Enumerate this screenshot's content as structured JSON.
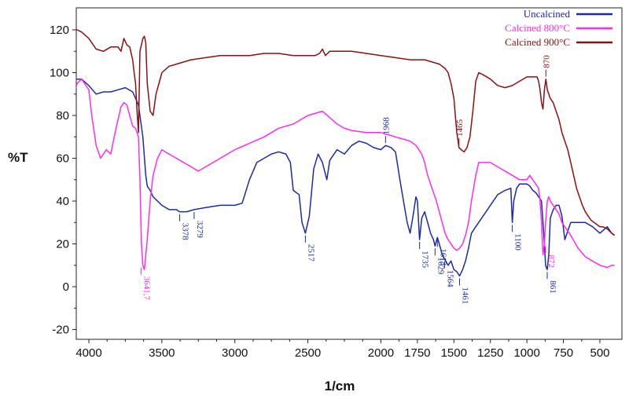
{
  "chart_data": {
    "type": "line",
    "xlabel": "1/cm",
    "ylabel": "%T",
    "xlim": [
      4100,
      400
    ],
    "ylim": [
      -25,
      130
    ],
    "x_ticks": [
      4000,
      3500,
      3000,
      2500,
      2000,
      1750,
      1500,
      1250,
      1000,
      750,
      500
    ],
    "y_ticks": [
      -20,
      0,
      20,
      40,
      60,
      80,
      100,
      120
    ],
    "legend_position": "top-right",
    "series": [
      {
        "name": "Uncalcined",
        "color": "#1c2aa8",
        "x": [
          4100,
          4050,
          4000,
          3950,
          3900,
          3850,
          3800,
          3750,
          3700,
          3660,
          3630,
          3610,
          3600,
          3580,
          3560,
          3530,
          3500,
          3450,
          3400,
          3378,
          3330,
          3279,
          3200,
          3100,
          3000,
          2950,
          2900,
          2850,
          2800,
          2750,
          2700,
          2650,
          2620,
          2600,
          2560,
          2540,
          2517,
          2490,
          2460,
          2430,
          2400,
          2370,
          2350,
          2300,
          2250,
          2200,
          2150,
          2100,
          2050,
          2000,
          1968,
          1930,
          1900,
          1870,
          1840,
          1820,
          1800,
          1780,
          1760,
          1750,
          1735,
          1720,
          1700,
          1680,
          1660,
          1640,
          1629,
          1613,
          1600,
          1580,
          1564,
          1540,
          1520,
          1500,
          1480,
          1461,
          1440,
          1420,
          1400,
          1380,
          1350,
          1300,
          1250,
          1200,
          1150,
          1110,
          1100,
          1090,
          1070,
          1050,
          1000,
          980,
          960,
          940,
          920,
          900,
          890,
          880,
          872,
          861,
          850,
          840,
          820,
          800,
          780,
          760,
          740,
          720,
          700,
          650,
          600,
          550,
          500,
          450,
          420,
          400
        ],
        "y": [
          97,
          97,
          94,
          90,
          91,
          91,
          92,
          93,
          91,
          85,
          70,
          52,
          47,
          45,
          42,
          40,
          38,
          36,
          36,
          35,
          35,
          36,
          37,
          38,
          38,
          39,
          50,
          58,
          60,
          62,
          63,
          62,
          58,
          45,
          43,
          30,
          25,
          33,
          55,
          62,
          58,
          50,
          59,
          64,
          62,
          66,
          68,
          67,
          65,
          64,
          66,
          65,
          63,
          50,
          38,
          30,
          25,
          33,
          42,
          40,
          22,
          32,
          35,
          30,
          25,
          22,
          19,
          23,
          20,
          15,
          13,
          10,
          12,
          8,
          7,
          5,
          8,
          12,
          18,
          25,
          28,
          33,
          38,
          43,
          45,
          46,
          30,
          40,
          46,
          48,
          48,
          47,
          45,
          44,
          42,
          40,
          30,
          20,
          10,
          8,
          15,
          32,
          36,
          38,
          38,
          33,
          22,
          26,
          30,
          30,
          30,
          28,
          25,
          28,
          25,
          24
        ]
      },
      {
        "name": "Calcined 800°C",
        "color": "#ff2cf0",
        "x": [
          4100,
          4080,
          4050,
          4000,
          3980,
          3950,
          3920,
          3900,
          3880,
          3850,
          3820,
          3800,
          3780,
          3760,
          3740,
          3720,
          3700,
          3680,
          3660,
          3650,
          3640,
          3630,
          3620,
          3600,
          3580,
          3560,
          3530,
          3500,
          3450,
          3400,
          3350,
          3300,
          3250,
          3200,
          3100,
          3000,
          2900,
          2800,
          2700,
          2600,
          2500,
          2400,
          2350,
          2300,
          2250,
          2200,
          2100,
          2000,
          1950,
          1900,
          1850,
          1800,
          1780,
          1760,
          1740,
          1720,
          1700,
          1680,
          1660,
          1640,
          1620,
          1600,
          1580,
          1560,
          1540,
          1500,
          1480,
          1460,
          1440,
          1420,
          1400,
          1380,
          1350,
          1330,
          1300,
          1250,
          1200,
          1150,
          1100,
          1050,
          1000,
          980,
          960,
          940,
          920,
          910,
          900,
          890,
          880,
          872,
          860,
          850,
          840,
          820,
          800,
          780,
          760,
          740,
          720,
          700,
          650,
          600,
          550,
          500,
          450,
          420,
          400
        ],
        "y": [
          90,
          95,
          97,
          92,
          80,
          66,
          60,
          62,
          64,
          62,
          72,
          78,
          84,
          86,
          85,
          80,
          75,
          74,
          70,
          50,
          20,
          10,
          8,
          22,
          40,
          52,
          60,
          64,
          62,
          60,
          58,
          56,
          54,
          56,
          60,
          64,
          67,
          70,
          74,
          76,
          80,
          82,
          79,
          76,
          74,
          73,
          72,
          72,
          71,
          70,
          69,
          68,
          67,
          66,
          64,
          62,
          58,
          52,
          48,
          44,
          40,
          35,
          30,
          25,
          22,
          18,
          17,
          18,
          20,
          24,
          30,
          40,
          52,
          58,
          58,
          58,
          56,
          54,
          52,
          50,
          50,
          52,
          50,
          48,
          46,
          40,
          30,
          15,
          20,
          30,
          40,
          42,
          40,
          38,
          36,
          34,
          30,
          28,
          26,
          24,
          18,
          14,
          12,
          10,
          9,
          10,
          10
        ]
      },
      {
        "name": "Calcined 900°C",
        "color": "#8b1010",
        "x": [
          4100,
          4080,
          4050,
          4000,
          3980,
          3950,
          3900,
          3850,
          3800,
          3780,
          3760,
          3740,
          3720,
          3700,
          3690,
          3680,
          3670,
          3660,
          3650,
          3640,
          3630,
          3620,
          3610,
          3600,
          3580,
          3560,
          3540,
          3500,
          3450,
          3400,
          3300,
          3200,
          3100,
          3000,
          2900,
          2800,
          2700,
          2600,
          2500,
          2450,
          2420,
          2400,
          2380,
          2350,
          2300,
          2200,
          2100,
          2000,
          1900,
          1800,
          1750,
          1700,
          1650,
          1600,
          1580,
          1560,
          1540,
          1520,
          1500,
          1490,
          1480,
          1465,
          1450,
          1430,
          1410,
          1390,
          1370,
          1350,
          1330,
          1300,
          1250,
          1200,
          1150,
          1100,
          1050,
          1000,
          950,
          930,
          920,
          910,
          900,
          890,
          880,
          870,
          860,
          850,
          840,
          820,
          800,
          780,
          760,
          740,
          720,
          700,
          680,
          660,
          640,
          620,
          600,
          580,
          560,
          540,
          520,
          500,
          480,
          450,
          420,
          400
        ],
        "y": [
          120,
          120,
          119,
          116,
          114,
          111,
          110,
          112,
          112,
          110,
          116,
          113,
          112,
          106,
          100,
          95,
          82,
          72,
          110,
          113,
          116,
          117,
          114,
          95,
          82,
          80,
          90,
          100,
          103,
          104,
          106,
          107,
          108,
          108,
          108,
          109,
          109,
          108,
          108,
          108,
          109,
          111,
          108,
          110,
          110,
          110,
          109,
          108,
          107,
          106,
          106,
          106,
          105,
          104,
          103,
          102,
          100,
          95,
          88,
          80,
          72,
          65,
          64,
          63,
          65,
          70,
          82,
          96,
          100,
          99,
          97,
          94,
          93,
          94,
          96,
          98,
          98,
          98,
          96,
          92,
          86,
          83,
          92,
          97,
          92,
          90,
          88,
          86,
          82,
          78,
          72,
          68,
          64,
          58,
          52,
          46,
          42,
          38,
          35,
          33,
          31,
          30,
          29,
          28,
          28,
          27,
          25,
          24
        ]
      }
    ],
    "annotations": [
      {
        "text": "3641,7",
        "series": 1,
        "x": 3641.7,
        "y": 10
      },
      {
        "text": "3378",
        "series": 0,
        "x": 3378,
        "y": 35
      },
      {
        "text": "3279",
        "series": 0,
        "x": 3279,
        "y": 36
      },
      {
        "text": "2517",
        "series": 0,
        "x": 2517,
        "y": 25
      },
      {
        "text": "1968",
        "series": 0,
        "x": 1968,
        "y": 66
      },
      {
        "text": "1735",
        "series": 0,
        "x": 1735,
        "y": 22
      },
      {
        "text": "1629",
        "series": 0,
        "x": 1629,
        "y": 19
      },
      {
        "text": "1613",
        "series": 0,
        "x": 1613,
        "y": 23
      },
      {
        "text": "1564",
        "series": 0,
        "x": 1564,
        "y": 13
      },
      {
        "text": "1461",
        "series": 0,
        "x": 1461,
        "y": 5
      },
      {
        "text": "1465",
        "series": 2,
        "x": 1465,
        "y": 65
      },
      {
        "text": "1100",
        "series": 0,
        "x": 1100,
        "y": 30
      },
      {
        "text": "870",
        "series": 2,
        "x": 870,
        "y": 97
      },
      {
        "text": "872",
        "series": 1,
        "x": 872,
        "y": 20
      },
      {
        "text": "861",
        "series": 0,
        "x": 861,
        "y": 8
      }
    ]
  }
}
